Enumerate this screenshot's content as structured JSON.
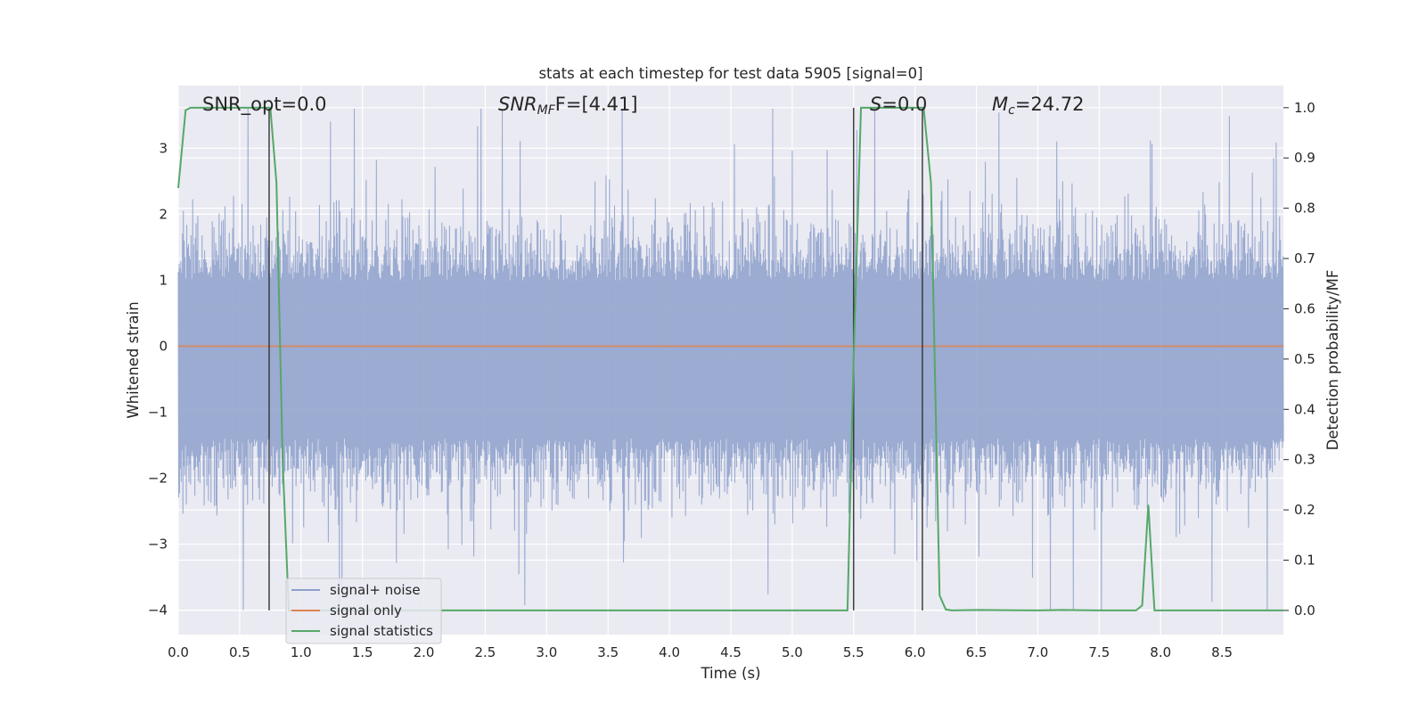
{
  "chart_data": {
    "type": "line",
    "title": "stats at each timestep for test data 5905 [signal=0]",
    "xlabel": "Time (s)",
    "ylabel_left": "Whitened strain",
    "ylabel_right": "Detection probability/MF",
    "xlim": [
      0.0,
      9.0
    ],
    "ylim_left": [
      -4.37,
      3.95
    ],
    "ylim_right": [
      -0.048,
      1.044
    ],
    "x_ticks": [
      "0.0",
      "0.5",
      "1.0",
      "1.5",
      "2.0",
      "2.5",
      "3.0",
      "3.5",
      "4.0",
      "4.5",
      "5.0",
      "5.5",
      "6.0",
      "6.5",
      "7.0",
      "7.5",
      "8.0",
      "8.5"
    ],
    "y_ticks_left": [
      "−4",
      "−3",
      "−2",
      "−1",
      "0",
      "1",
      "2",
      "3"
    ],
    "y_ticks_right": [
      "0.0",
      "0.1",
      "0.2",
      "0.3",
      "0.4",
      "0.5",
      "0.6",
      "0.7",
      "0.8",
      "0.9",
      "1.0"
    ],
    "grid": true,
    "legend_position": "lower-left",
    "annotations": {
      "snr_opt": "SNR_opt=0.0",
      "snr_mf_main": "SNR",
      "snr_mf_sub": "MF",
      "snr_mf_value": "F=[4.41]",
      "s_main": "S",
      "s_value": "=0.0",
      "mc_main": "M",
      "mc_sub": "c",
      "mc_value": "=24.72"
    },
    "series": [
      {
        "name": "signal+ noise",
        "axis": "left",
        "color": "#8da0cb",
        "description_values": "noise band roughly -1.7..1.3 with spikes up to 3.6 and down to -4.0",
        "stats": {
          "typical_min": -1.7,
          "typical_max": 1.3,
          "max": 3.6,
          "min": -4.0
        }
      },
      {
        "name": "signal only",
        "axis": "left",
        "color": "#dd8452",
        "x": [
          0.0,
          9.0
        ],
        "y": [
          0.0,
          0.0
        ]
      },
      {
        "name": "signal statistics",
        "axis": "right",
        "color": "#55a868",
        "x": [
          0.0,
          0.06,
          0.1,
          0.2,
          0.3,
          0.4,
          0.5,
          0.6,
          0.7,
          0.75,
          0.8,
          0.85,
          0.9,
          1.0,
          1.5,
          2.0,
          2.5,
          3.0,
          3.5,
          4.0,
          4.5,
          5.0,
          5.3,
          5.45,
          5.5,
          5.56,
          5.6,
          5.8,
          6.0,
          6.07,
          6.13,
          6.2,
          6.25,
          6.3,
          6.5,
          7.0,
          7.2,
          7.5,
          7.8,
          7.85,
          7.9,
          7.95,
          8.0,
          8.5,
          9.0
        ],
        "y": [
          0.84,
          0.995,
          1.0,
          1.0,
          1.0,
          1.0,
          1.0,
          1.0,
          1.0,
          1.0,
          0.85,
          0.3,
          0.0,
          0.0,
          0.0,
          0.0,
          0.0,
          0.0,
          0.0,
          0.0,
          0.0,
          0.0,
          0.0,
          0.0,
          0.5,
          1.0,
          1.0,
          1.0,
          1.0,
          1.0,
          0.85,
          0.03,
          0.002,
          0.0,
          0.001,
          0.0,
          0.001,
          0.0,
          0.0,
          0.01,
          0.21,
          0.0,
          0.0,
          0.0,
          0.0
        ]
      }
    ],
    "vertical_markers": {
      "color": "#333333",
      "x": [
        0.74,
        5.5,
        6.06
      ]
    }
  },
  "legend": {
    "items": [
      "signal+ noise",
      "signal only",
      "signal statistics"
    ]
  }
}
